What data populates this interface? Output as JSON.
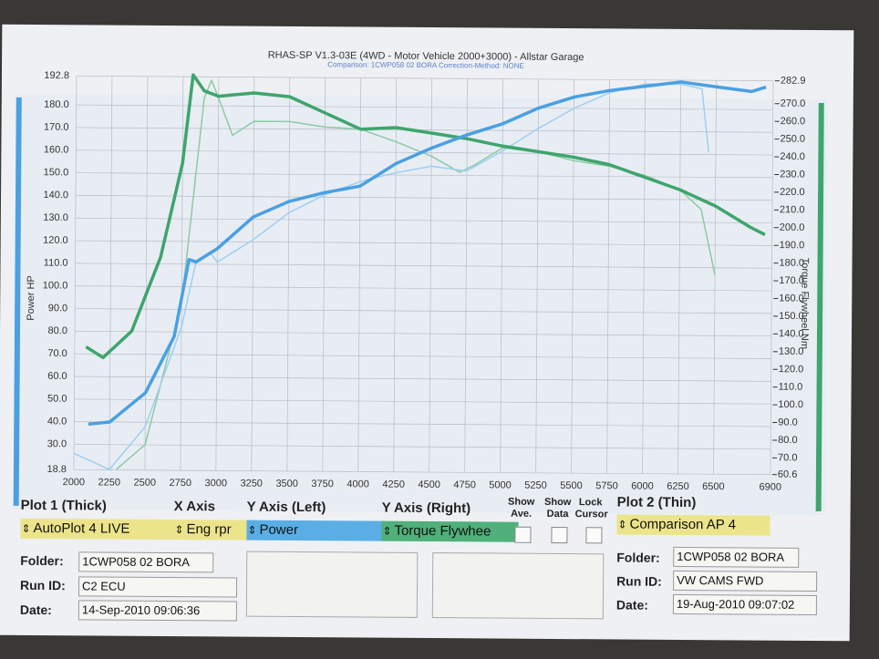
{
  "chart_data": {
    "type": "line",
    "title": "RHAS-SP V1.3-03E  (4WD - Motor Vehicle 2000+3000) - Allstar Garage",
    "subtitle": "Comparison: 1CWP058 02 BORA   Correction-Method: NONE",
    "y_label": "Power HP",
    "y2_label": "Torque Flywheel Nm",
    "xlim": [
      2000,
      6900
    ],
    "xticks": [
      2000,
      2250,
      2500,
      2750,
      3000,
      3250,
      3500,
      3750,
      4000,
      4250,
      4500,
      4750,
      5000,
      5250,
      5500,
      5750,
      6000,
      6250,
      6500,
      6900
    ],
    "ylim": [
      18.8,
      192.8
    ],
    "yticks": [
      18.8,
      {
        "value": 30,
        "label": "30.0"
      },
      {
        "value": 40,
        "label": "40.0"
      },
      {
        "value": 50,
        "label": "50.0"
      },
      {
        "value": 60,
        "label": "60.0"
      },
      {
        "value": 70,
        "label": "70.0"
      },
      {
        "value": 80,
        "label": "80.0"
      },
      {
        "value": 90,
        "label": "90.0"
      },
      {
        "value": 100,
        "label": "100.0"
      },
      {
        "value": 110,
        "label": "110.0"
      },
      {
        "value": 120,
        "label": "120.0"
      },
      {
        "value": 130,
        "label": "130.0"
      },
      {
        "value": 140,
        "label": "140.0"
      },
      {
        "value": 150,
        "label": "150.0"
      },
      {
        "value": 160,
        "label": "160.0"
      },
      {
        "value": 170,
        "label": "170.0"
      },
      {
        "value": 180,
        "label": "180.0"
      },
      192.8
    ],
    "y2lim": [
      60.6,
      282.9
    ],
    "y2ticks": [
      60.6,
      {
        "value": 70,
        "label": "70.0"
      },
      {
        "value": 80,
        "label": "80.0"
      },
      {
        "value": 90,
        "label": "90.0"
      },
      {
        "value": 100,
        "label": "100.0"
      },
      {
        "value": 110,
        "label": "110.0"
      },
      {
        "value": 120,
        "label": "120.0"
      },
      {
        "value": 130,
        "label": "130.0"
      },
      {
        "value": 140,
        "label": "140.0"
      },
      {
        "value": 150,
        "label": "150.0"
      },
      {
        "value": 160,
        "label": "160.0"
      },
      {
        "value": 170,
        "label": "170.0"
      },
      {
        "value": 180,
        "label": "180.0"
      },
      {
        "value": 190,
        "label": "190.0"
      },
      {
        "value": 200,
        "label": "200.0"
      },
      {
        "value": 210,
        "label": "210.0"
      },
      {
        "value": 220,
        "label": "220.0"
      },
      {
        "value": 230,
        "label": "230.0"
      },
      {
        "value": 240,
        "label": "240.0"
      },
      {
        "value": 250,
        "label": "250.0"
      },
      {
        "value": 260,
        "label": "260.0"
      },
      {
        "value": 270,
        "label": "270.0"
      },
      282.9
    ],
    "grid": true,
    "series": [
      {
        "color": "#4aa0e2",
        "width": 3.5,
        "x": [
          2100,
          2250,
          2500,
          2700,
          2800,
          2850,
          3000,
          3250,
          3500,
          3750,
          4000,
          4250,
          4500,
          4750,
          5000,
          5250,
          5500,
          5750,
          6000,
          6250,
          6500,
          6750,
          6850
        ],
        "values": [
          39,
          40,
          53,
          78,
          112,
          111,
          117,
          131,
          138,
          142,
          145,
          155,
          162,
          168,
          173,
          180,
          185,
          188,
          190,
          192,
          190,
          188,
          190
        ]
      },
      {
        "color": "#3ea56c",
        "width": 3.5,
        "axis": "y2",
        "x": [
          2080,
          2200,
          2400,
          2600,
          2750,
          2820,
          2900,
          3000,
          3250,
          3500,
          3750,
          4000,
          4250,
          4500,
          4750,
          5000,
          5250,
          5500,
          5750,
          6000,
          6250,
          6500,
          6750,
          6850
        ],
        "values": [
          130,
          124,
          139,
          181,
          234,
          284,
          275,
          272,
          274,
          272,
          263,
          254,
          255,
          252,
          249,
          245,
          242,
          239,
          235,
          228,
          221,
          212,
          200,
          196
        ]
      },
      {
        "color": "#9fcff0",
        "width": 1.5,
        "x": [
          2000,
          2250,
          2500,
          2750,
          2850,
          2950,
          3000,
          3250,
          3500,
          3750,
          4000,
          4250,
          4500,
          4750,
          5000,
          5250,
          5500,
          5750,
          6000,
          6250,
          6400,
          6450
        ],
        "values": [
          26,
          19,
          38,
          82,
          111,
          115,
          111,
          121,
          133,
          141,
          147,
          151,
          154,
          152,
          161,
          171,
          180,
          187,
          191,
          191,
          189,
          161
        ]
      },
      {
        "color": "#8ccaa6",
        "width": 1.5,
        "axis": "y2",
        "x": [
          2300,
          2500,
          2750,
          2900,
          2950,
          3000,
          3100,
          3250,
          3500,
          3750,
          4000,
          4250,
          4500,
          4700,
          4800,
          5000,
          5250,
          5500,
          5750,
          6000,
          6250,
          6400,
          6500
        ],
        "values": [
          61,
          75,
          155,
          271,
          281,
          271,
          250,
          258,
          258,
          255,
          254,
          247,
          239,
          230,
          234,
          244,
          242,
          237,
          234,
          229,
          221,
          210,
          173
        ]
      }
    ]
  },
  "panel": {
    "plot1": {
      "heading": "Plot 1 (Thick)",
      "selector": "AutoPlot 4 LIVE",
      "folder_label": "Folder:",
      "folder": "1CWP058 02 BORA",
      "run_label": "Run ID:",
      "run": "C2 ECU",
      "date_label": "Date:",
      "date": "14-Sep-2010  09:06:36"
    },
    "x_axis": {
      "heading": "X Axis",
      "value": "Eng rpr"
    },
    "y_left": {
      "heading": "Y Axis (Left)",
      "value": "Power"
    },
    "y_right": {
      "heading": "Y Axis (Right)",
      "value": "Torque Flywhee"
    },
    "checks": [
      {
        "top": "Show",
        "bottom": "Ave."
      },
      {
        "top": "Show",
        "bottom": "Data"
      },
      {
        "top": "Lock",
        "bottom": "Cursor"
      }
    ],
    "plot2": {
      "heading": "Plot 2 (Thin)",
      "selector": "Comparison AP 4",
      "folder_label": "Folder:",
      "folder": "1CWP058 02 BORA",
      "run_label": "Run ID:",
      "run": "VW CAMS FWD",
      "date_label": "Date:",
      "date": "19-Aug-2010  09:07:02"
    }
  }
}
